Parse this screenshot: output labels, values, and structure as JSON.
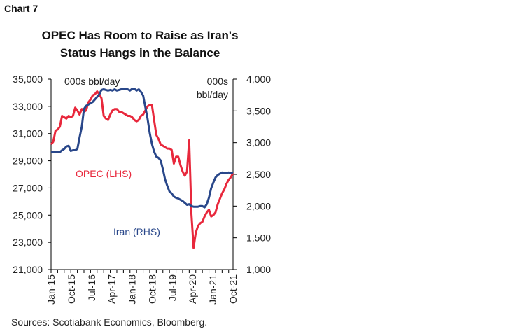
{
  "header": {
    "chart_number": "Chart 7",
    "title_line1": "OPEC Has Room to Raise as Iran's",
    "title_line2": "Status Hangs in the Balance"
  },
  "footer": {
    "source": "Sources: Scotiabank Economics, Bloomberg."
  },
  "chart_data": {
    "type": "line",
    "title": "OPEC Has Room to Raise as Iran's Status Hangs in the Balance",
    "left_axis": {
      "unit": "000s bbl/day",
      "range": [
        21000,
        35000
      ],
      "ticks": [
        "35,000",
        "33,000",
        "31,000",
        "29,000",
        "27,000",
        "25,000",
        "23,000",
        "21,000"
      ]
    },
    "right_axis": {
      "unit_line1": "000s",
      "unit_line2": "bbl/day",
      "range": [
        1000,
        4000
      ],
      "ticks": [
        "4,000",
        "3,500",
        "3,000",
        "2,500",
        "2,000",
        "1,500",
        "1,000"
      ]
    },
    "x_tick_labels": [
      "Jan-15",
      "Oct-15",
      "Jul-16",
      "Apr-17",
      "Jan-18",
      "Oct-18",
      "Jul-19",
      "Apr-20",
      "Jan-21",
      "Oct-21"
    ],
    "grid": false,
    "series": [
      {
        "name": "OPEC (LHS)",
        "axis": "left",
        "color": "#e8283c",
        "points": [
          [
            "2015-01",
            30200
          ],
          [
            "2015-02",
            30400
          ],
          [
            "2015-03",
            31200
          ],
          [
            "2015-04",
            31300
          ],
          [
            "2015-05",
            31500
          ],
          [
            "2015-06",
            32300
          ],
          [
            "2015-07",
            32200
          ],
          [
            "2015-08",
            32100
          ],
          [
            "2015-09",
            32300
          ],
          [
            "2015-10",
            32200
          ],
          [
            "2015-11",
            32300
          ],
          [
            "2015-12",
            32900
          ],
          [
            "2016-01",
            32700
          ],
          [
            "2016-02",
            32400
          ],
          [
            "2016-03",
            32800
          ],
          [
            "2016-04",
            32600
          ],
          [
            "2016-05",
            32700
          ],
          [
            "2016-06",
            33300
          ],
          [
            "2016-07",
            33500
          ],
          [
            "2016-08",
            33800
          ],
          [
            "2016-09",
            33900
          ],
          [
            "2016-10",
            34100
          ],
          [
            "2016-11",
            33900
          ],
          [
            "2016-12",
            33600
          ],
          [
            "2017-01",
            32300
          ],
          [
            "2017-02",
            32100
          ],
          [
            "2017-03",
            32000
          ],
          [
            "2017-04",
            32400
          ],
          [
            "2017-05",
            32700
          ],
          [
            "2017-06",
            32800
          ],
          [
            "2017-07",
            32800
          ],
          [
            "2017-08",
            32600
          ],
          [
            "2017-09",
            32600
          ],
          [
            "2017-10",
            32500
          ],
          [
            "2017-11",
            32400
          ],
          [
            "2017-12",
            32300
          ],
          [
            "2018-01",
            32300
          ],
          [
            "2018-02",
            32200
          ],
          [
            "2018-03",
            32000
          ],
          [
            "2018-04",
            31900
          ],
          [
            "2018-05",
            32000
          ],
          [
            "2018-06",
            32300
          ],
          [
            "2018-07",
            32400
          ],
          [
            "2018-08",
            32700
          ],
          [
            "2018-09",
            33000
          ],
          [
            "2018-10",
            33100
          ],
          [
            "2018-11",
            33100
          ],
          [
            "2018-12",
            32000
          ],
          [
            "2019-01",
            30900
          ],
          [
            "2019-02",
            30600
          ],
          [
            "2019-03",
            30200
          ],
          [
            "2019-04",
            30100
          ],
          [
            "2019-05",
            30000
          ],
          [
            "2019-06",
            29900
          ],
          [
            "2019-07",
            29900
          ],
          [
            "2019-08",
            29800
          ],
          [
            "2019-09",
            28800
          ],
          [
            "2019-10",
            29300
          ],
          [
            "2019-11",
            29300
          ],
          [
            "2019-12",
            28700
          ],
          [
            "2020-01",
            28200
          ],
          [
            "2020-02",
            27900
          ],
          [
            "2020-03",
            28200
          ],
          [
            "2020-04",
            30500
          ],
          [
            "2020-05",
            25100
          ],
          [
            "2020-06",
            22600
          ],
          [
            "2020-07",
            23700
          ],
          [
            "2020-08",
            24200
          ],
          [
            "2020-09",
            24400
          ],
          [
            "2020-10",
            24500
          ],
          [
            "2020-11",
            24900
          ],
          [
            "2020-12",
            25200
          ],
          [
            "2021-01",
            25400
          ],
          [
            "2021-02",
            24900
          ],
          [
            "2021-03",
            25000
          ],
          [
            "2021-04",
            25200
          ],
          [
            "2021-05",
            25800
          ],
          [
            "2021-06",
            26200
          ],
          [
            "2021-07",
            26600
          ],
          [
            "2021-08",
            26900
          ],
          [
            "2021-09",
            27300
          ],
          [
            "2021-10",
            27600
          ],
          [
            "2021-11",
            27800
          ],
          [
            "2021-12",
            28100
          ]
        ]
      },
      {
        "name": "Iran (RHS)",
        "axis": "right",
        "color": "#29478a",
        "points": [
          [
            "2015-01",
            2850
          ],
          [
            "2015-02",
            2850
          ],
          [
            "2015-03",
            2850
          ],
          [
            "2015-04",
            2850
          ],
          [
            "2015-05",
            2850
          ],
          [
            "2015-06",
            2880
          ],
          [
            "2015-07",
            2900
          ],
          [
            "2015-08",
            2940
          ],
          [
            "2015-09",
            2950
          ],
          [
            "2015-10",
            2870
          ],
          [
            "2015-11",
            2880
          ],
          [
            "2015-12",
            2880
          ],
          [
            "2016-01",
            2900
          ],
          [
            "2016-02",
            3080
          ],
          [
            "2016-03",
            3250
          ],
          [
            "2016-04",
            3530
          ],
          [
            "2016-05",
            3580
          ],
          [
            "2016-06",
            3600
          ],
          [
            "2016-07",
            3620
          ],
          [
            "2016-08",
            3640
          ],
          [
            "2016-09",
            3680
          ],
          [
            "2016-10",
            3720
          ],
          [
            "2016-11",
            3760
          ],
          [
            "2016-12",
            3830
          ],
          [
            "2017-01",
            3840
          ],
          [
            "2017-02",
            3830
          ],
          [
            "2017-03",
            3820
          ],
          [
            "2017-04",
            3830
          ],
          [
            "2017-05",
            3820
          ],
          [
            "2017-06",
            3840
          ],
          [
            "2017-07",
            3820
          ],
          [
            "2017-08",
            3830
          ],
          [
            "2017-09",
            3840
          ],
          [
            "2017-10",
            3850
          ],
          [
            "2017-11",
            3840
          ],
          [
            "2017-12",
            3840
          ],
          [
            "2018-01",
            3820
          ],
          [
            "2018-02",
            3850
          ],
          [
            "2018-03",
            3850
          ],
          [
            "2018-04",
            3820
          ],
          [
            "2018-05",
            3840
          ],
          [
            "2018-06",
            3800
          ],
          [
            "2018-07",
            3740
          ],
          [
            "2018-08",
            3560
          ],
          [
            "2018-09",
            3380
          ],
          [
            "2018-10",
            3150
          ],
          [
            "2018-11",
            2980
          ],
          [
            "2018-12",
            2860
          ],
          [
            "2019-01",
            2780
          ],
          [
            "2019-02",
            2760
          ],
          [
            "2019-03",
            2720
          ],
          [
            "2019-04",
            2580
          ],
          [
            "2019-05",
            2420
          ],
          [
            "2019-06",
            2320
          ],
          [
            "2019-07",
            2230
          ],
          [
            "2019-08",
            2200
          ],
          [
            "2019-09",
            2150
          ],
          [
            "2019-10",
            2130
          ],
          [
            "2019-11",
            2120
          ],
          [
            "2019-12",
            2100
          ],
          [
            "2020-01",
            2080
          ],
          [
            "2020-02",
            2050
          ],
          [
            "2020-03",
            2020
          ],
          [
            "2020-04",
            2030
          ],
          [
            "2020-05",
            2000
          ],
          [
            "2020-06",
            1990
          ],
          [
            "2020-07",
            1990
          ],
          [
            "2020-08",
            1990
          ],
          [
            "2020-09",
            2000
          ],
          [
            "2020-10",
            2000
          ],
          [
            "2020-11",
            1980
          ],
          [
            "2020-12",
            2030
          ],
          [
            "2021-01",
            2130
          ],
          [
            "2021-02",
            2280
          ],
          [
            "2021-03",
            2370
          ],
          [
            "2021-04",
            2450
          ],
          [
            "2021-05",
            2490
          ],
          [
            "2021-06",
            2510
          ],
          [
            "2021-07",
            2530
          ],
          [
            "2021-08",
            2520
          ],
          [
            "2021-09",
            2520
          ],
          [
            "2021-10",
            2530
          ],
          [
            "2021-11",
            2520
          ],
          [
            "2021-12",
            2520
          ]
        ]
      }
    ]
  }
}
